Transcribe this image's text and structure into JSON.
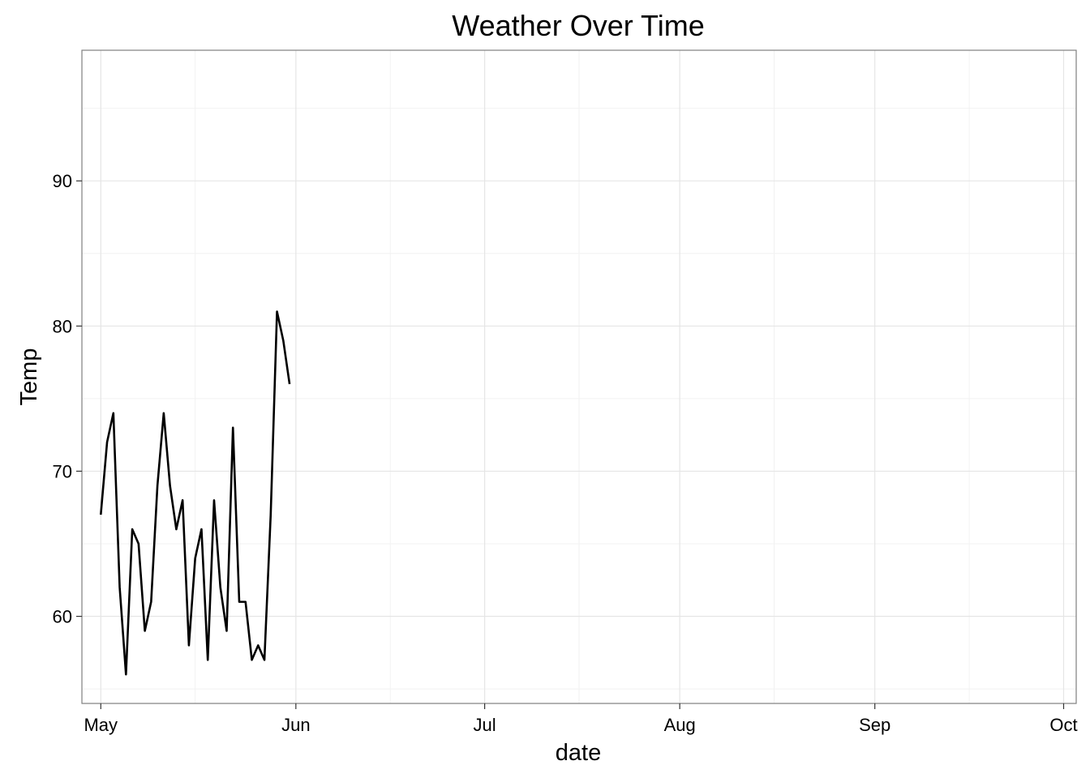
{
  "chart_data": {
    "type": "line",
    "title": "Weather Over Time",
    "xlabel": "date",
    "ylabel": "Temp",
    "x_axis_type": "date",
    "xlim": [
      "2024-04-28",
      "2024-10-03"
    ],
    "ylim": [
      54,
      99
    ],
    "x_ticks": [
      {
        "date": "2024-05-01",
        "label": "May"
      },
      {
        "date": "2024-06-01",
        "label": "Jun"
      },
      {
        "date": "2024-07-01",
        "label": "Jul"
      },
      {
        "date": "2024-08-01",
        "label": "Aug"
      },
      {
        "date": "2024-09-01",
        "label": "Sep"
      },
      {
        "date": "2024-10-01",
        "label": "Oct"
      }
    ],
    "y_ticks": [
      60,
      70,
      80,
      90
    ],
    "y_minor_ticks": [
      55,
      65,
      75,
      85,
      95
    ],
    "x_minor_ticks": [
      "2024-05-16",
      "2024-06-16",
      "2024-07-16",
      "2024-08-16",
      "2024-09-16"
    ],
    "grid": true,
    "series": [
      {
        "color": "#000000",
        "points": [
          {
            "x": "2024-05-01",
            "y": 67
          },
          {
            "x": "2024-05-02",
            "y": 72
          },
          {
            "x": "2024-05-03",
            "y": 74
          },
          {
            "x": "2024-05-04",
            "y": 62
          },
          {
            "x": "2024-05-05",
            "y": 56
          },
          {
            "x": "2024-05-06",
            "y": 66
          },
          {
            "x": "2024-05-07",
            "y": 65
          },
          {
            "x": "2024-05-08",
            "y": 59
          },
          {
            "x": "2024-05-09",
            "y": 61
          },
          {
            "x": "2024-05-10",
            "y": 69
          },
          {
            "x": "2024-05-11",
            "y": 74
          },
          {
            "x": "2024-05-12",
            "y": 69
          },
          {
            "x": "2024-05-13",
            "y": 66
          },
          {
            "x": "2024-05-14",
            "y": 68
          },
          {
            "x": "2024-05-15",
            "y": 58
          },
          {
            "x": "2024-05-16",
            "y": 64
          },
          {
            "x": "2024-05-17",
            "y": 66
          },
          {
            "x": "2024-05-18",
            "y": 57
          },
          {
            "x": "2024-05-19",
            "y": 68
          },
          {
            "x": "2024-05-20",
            "y": 62
          },
          {
            "x": "2024-05-21",
            "y": 59
          },
          {
            "x": "2024-05-22",
            "y": 73
          },
          {
            "x": "2024-05-23",
            "y": 61
          },
          {
            "x": "2024-05-24",
            "y": 61
          },
          {
            "x": "2024-05-25",
            "y": 57
          },
          {
            "x": "2024-05-26",
            "y": 58
          },
          {
            "x": "2024-05-27",
            "y": 57
          },
          {
            "x": "2024-05-28",
            "y": 67
          },
          {
            "x": "2024-05-29",
            "y": 81
          },
          {
            "x": "2024-05-30",
            "y": 79
          },
          {
            "x": "2024-05-31",
            "y": 76
          }
        ]
      }
    ]
  },
  "colors": {
    "background": "#ffffff",
    "panel_border": "#7f7f7f",
    "grid_major": "#e5e5e5",
    "grid_minor": "#f2f2f2",
    "line": "#000000",
    "tick": "#333333"
  }
}
